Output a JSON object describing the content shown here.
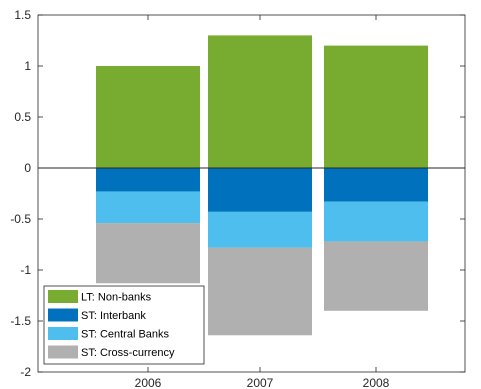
{
  "chart_data": {
    "type": "bar",
    "stacked": true,
    "categories": [
      "2006",
      "2007",
      "2008"
    ],
    "series": [
      {
        "name": "LT: Non-banks",
        "color": "#77ac30",
        "values": [
          1.0,
          1.3,
          1.2
        ]
      },
      {
        "name": "ST: Interbank",
        "color": "#0072bd",
        "values": [
          -0.23,
          -0.43,
          -0.33
        ]
      },
      {
        "name": "ST: Central Banks",
        "color": "#4dbeee",
        "values": [
          -0.31,
          -0.35,
          -0.39
        ]
      },
      {
        "name": "ST: Cross-currency",
        "color": "#b0b0b0",
        "values": [
          -0.59,
          -0.86,
          -0.68
        ]
      }
    ],
    "ylim": [
      -2,
      1.5
    ],
    "yticks": [
      "-2",
      "-1.5",
      "-1",
      "-0.5",
      "0",
      "0.5",
      "1",
      "1.5"
    ],
    "grid": false,
    "legend_position": "bottom-left",
    "title": "",
    "xlabel": "",
    "ylabel": ""
  }
}
